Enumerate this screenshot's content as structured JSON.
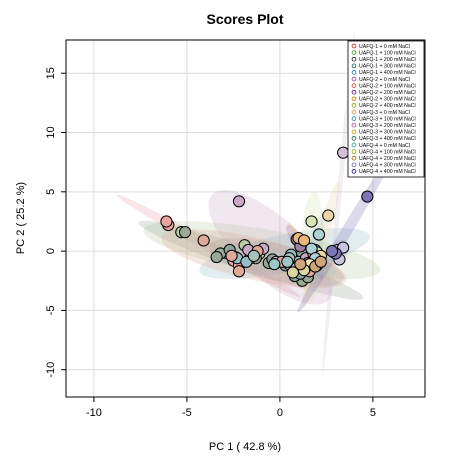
{
  "chart_data": {
    "type": "scatter",
    "title": "Scores Plot",
    "xlabel": "PC 1 ( 42.8 %)",
    "ylabel": "PC 2 ( 25.2 %)",
    "xlim": [
      -11.5,
      7.8
    ],
    "ylim": [
      -12.3,
      17.8
    ],
    "xticks": [
      -10,
      -5,
      0,
      5
    ],
    "yticks": [
      -10,
      -5,
      0,
      5,
      10,
      15
    ],
    "grid": true,
    "legend_position": "top-right",
    "series": [
      {
        "name": "UAFQ-1 + 0 mM NaCl",
        "color": "#e9a3a0",
        "points": [
          [
            -6,
            2.2
          ],
          [
            -6.1,
            2.5
          ],
          [
            -2.5,
            -0.8
          ],
          [
            -2.4,
            -0.5
          ],
          [
            -2.2,
            -1.2
          ]
        ]
      },
      {
        "name": "UAFQ-1 + 100 mM NaCl",
        "color": "#b7cfa3",
        "points": [
          [
            -5.3,
            1.6
          ],
          [
            -2.8,
            -0.2
          ],
          [
            -1.9,
            0.5
          ],
          [
            -1.1,
            -0.2
          ],
          [
            1.2,
            0.8
          ],
          [
            1.5,
            -0.5
          ],
          [
            1.6,
            -1.5
          ]
        ]
      },
      {
        "name": "UAFQ-1 + 200 mM NaCl",
        "color": "#9aa896",
        "points": [
          [
            -5.1,
            1.6
          ],
          [
            -3.2,
            -0.2
          ],
          [
            -3.4,
            -0.5
          ],
          [
            -1.3,
            -0.6
          ],
          [
            -0.6,
            -1.0
          ],
          [
            1.2,
            -2.5
          ],
          [
            1.5,
            -2.2
          ]
        ]
      },
      {
        "name": "UAFQ-1 + 300 mM NaCl",
        "color": "#8fa39c",
        "points": [
          [
            -2.7,
            0.1
          ],
          [
            -1.6,
            -0.6
          ],
          [
            -0.4,
            -0.7
          ],
          [
            0.3,
            -1.2
          ],
          [
            0.8,
            -2.1
          ],
          [
            1.1,
            -1.9
          ],
          [
            1.2,
            -0.2
          ]
        ]
      },
      {
        "name": "UAFQ-1 + 400 mM NaCl",
        "color": "#96c0c8",
        "points": [
          [
            -2.3,
            -0.6
          ],
          [
            -1.8,
            -0.9
          ],
          [
            0.6,
            -0.3
          ],
          [
            1.0,
            -0.9
          ],
          [
            1.9,
            0.1
          ],
          [
            2.1,
            1.4
          ]
        ]
      },
      {
        "name": "UAFQ-2 + 0 mM NaCl",
        "color": "#c9a8c6",
        "points": [
          [
            -2.2,
            4.2
          ],
          [
            -1.7,
            0.1
          ],
          [
            -0.9,
            0.2
          ],
          [
            -0.2,
            -0.9
          ],
          [
            0.5,
            -1.1
          ],
          [
            1.4,
            -0.6
          ]
        ]
      },
      {
        "name": "UAFQ-2 + 100 mM NaCl",
        "color": "#e0a898",
        "points": [
          [
            -4.1,
            0.9
          ],
          [
            -2.6,
            -0.4
          ],
          [
            -2.2,
            -1.7
          ],
          [
            -1.2,
            0.0
          ],
          [
            0.1,
            -0.9
          ],
          [
            1.6,
            -1.7
          ]
        ]
      },
      {
        "name": "UAFQ-2 + 200 mM NaCl",
        "color": "#a07fa0",
        "points": [
          [
            0.9,
            1.0
          ],
          [
            1.1,
            0.4
          ],
          [
            1.5,
            -1.0
          ],
          [
            1.8,
            -0.7
          ]
        ]
      },
      {
        "name": "UAFQ-2 + 300 mM NaCl",
        "color": "#e7b77b",
        "points": [
          [
            1.0,
            1.1
          ],
          [
            1.3,
            0.9
          ],
          [
            1.8,
            -0.2
          ],
          [
            2.0,
            -0.8
          ]
        ]
      },
      {
        "name": "UAFQ-2 + 400 mM NaCl",
        "color": "#d6e6b3",
        "points": [
          [
            1.7,
            2.5
          ],
          [
            2.0,
            -0.1
          ],
          [
            1.5,
            -1.2
          ]
        ]
      },
      {
        "name": "UAFQ-3 + 0 mM NaCl",
        "color": "#edd3a8",
        "points": [
          [
            2.6,
            3.0
          ],
          [
            1.8,
            -1.0
          ],
          [
            2.2,
            -0.4
          ]
        ]
      },
      {
        "name": "UAFQ-3 + 100 mM NaCl",
        "color": "#aecfd4",
        "points": [
          [
            2.1,
            1.4
          ],
          [
            1.7,
            0.2
          ],
          [
            1.9,
            -0.6
          ]
        ]
      },
      {
        "name": "UAFQ-3 + 200 mM NaCl",
        "color": "#d3c0d6",
        "points": [
          [
            3.4,
            8.3
          ],
          [
            2.9,
            -0.1
          ]
        ]
      },
      {
        "name": "UAFQ-3 + 300 mM NaCl",
        "color": "#f1e5b6",
        "points": [
          [
            1.2,
            -1.3
          ],
          [
            1.6,
            -1.1
          ],
          [
            2.0,
            -1.2
          ]
        ]
      },
      {
        "name": "UAFQ-3 + 400 mM NaCl",
        "color": "#a8c4bd",
        "points": [
          [
            -1.4,
            -0.4
          ],
          [
            0.5,
            -0.6
          ],
          [
            0.9,
            -1.4
          ]
        ]
      },
      {
        "name": "UAFQ-4 + 0 mM NaCl",
        "color": "#9dc6c6",
        "points": [
          [
            -0.3,
            -1.1
          ],
          [
            0.4,
            -0.9
          ]
        ]
      },
      {
        "name": "UAFQ-4 + 100 mM NaCl",
        "color": "#d9d6a0",
        "points": [
          [
            0.7,
            -1.8
          ],
          [
            1.3,
            -1.6
          ]
        ]
      },
      {
        "name": "UAFQ-4 + 200 mM NaCl",
        "color": "#cfa57a",
        "points": [
          [
            1.1,
            -1.1
          ],
          [
            1.9,
            -1.3
          ],
          [
            2.2,
            -0.9
          ]
        ]
      },
      {
        "name": "UAFQ-4 + 300 mM NaCl",
        "color": "#c8c3df",
        "points": [
          [
            2.9,
            0.0
          ],
          [
            3.1,
            0.1
          ],
          [
            3.4,
            0.3
          ],
          [
            3.2,
            -0.7
          ]
        ]
      },
      {
        "name": "UAFQ-4 + 400 mM NaCl",
        "color": "#7c76b8",
        "points": [
          [
            4.7,
            4.6
          ],
          [
            3.0,
            -0.2
          ],
          [
            2.8,
            0.0
          ]
        ]
      }
    ]
  },
  "legend_edge_colors": [
    "#cc3333",
    "#5a9a33",
    "#333333",
    "#2a7a77",
    "#2288aa",
    "#aa44aa",
    "#dd5533",
    "#772277",
    "#dd8811",
    "#88aa22",
    "#dd9944",
    "#3399aa",
    "#aa66aa",
    "#ccaa22",
    "#2a6a55",
    "#33aaaa",
    "#aaaa22",
    "#aa7722",
    "#7777cc",
    "#222288"
  ]
}
